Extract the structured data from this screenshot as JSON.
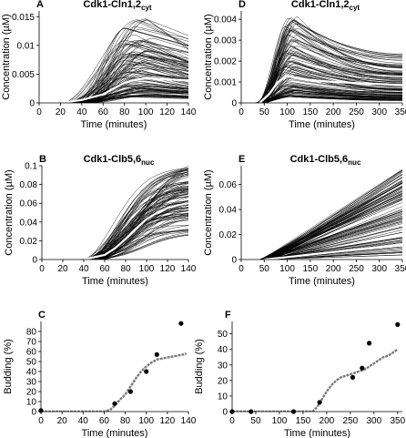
{
  "chart_data": [
    {
      "panel": "A",
      "type": "line",
      "title": "Cdk1-Cln1,2",
      "title_subscript": "cyt",
      "xlabel": "Time (minutes)",
      "ylabel": "Concentration (µM)",
      "xlim": [
        0,
        140
      ],
      "ylim": [
        0,
        0.016
      ],
      "xticks": [
        "0",
        "20",
        "40",
        "60",
        "80",
        "100",
        "120",
        "140"
      ],
      "yticks": [
        "0",
        "0.005",
        "0.01",
        "0.015"
      ],
      "grid": false,
      "ensemble": {
        "count": 110,
        "color": "#000000",
        "curve": "rise-plateau",
        "onset_range": [
          20,
          50
        ],
        "peak_time_range": [
          80,
          110
        ],
        "peak_range": [
          0.001,
          0.015
        ],
        "end_ratio_range": [
          0.6,
          0.85
        ]
      },
      "highlight": {
        "color": "#ffffff",
        "x": [
          20,
          40,
          60,
          70,
          80,
          90,
          100,
          110,
          120,
          130,
          140
        ],
        "values": [
          0,
          0.0005,
          0.0015,
          0.0025,
          0.0035,
          0.004,
          0.0043,
          0.0042,
          0.0041,
          0.004,
          0.0039
        ]
      }
    },
    {
      "panel": "D",
      "type": "line",
      "title": "Cdk1-Cln1,2",
      "title_subscript": "cyt",
      "xlabel": "Time (minutes)",
      "ylabel": "Concentration (µM)",
      "xlim": [
        0,
        350
      ],
      "ylim": [
        0,
        0.0044
      ],
      "xticks": [
        "0",
        "50",
        "100",
        "150",
        "200",
        "250",
        "300",
        "350"
      ],
      "yticks": [
        "0",
        "0.001",
        "0.002",
        "0.003",
        "0.004"
      ],
      "grid": false,
      "ensemble": {
        "count": 110,
        "color": "#000000",
        "curve": "rise-decay",
        "onset_range": [
          30,
          50
        ],
        "peak_time_range": [
          95,
          125
        ],
        "peak_range": [
          0.0003,
          0.0042
        ],
        "end_ratio_range": [
          0.35,
          0.65
        ]
      },
      "highlight": {
        "color": "#ffffff",
        "x": [
          40,
          60,
          80,
          100,
          120,
          150,
          200,
          250,
          300,
          350
        ],
        "values": [
          0,
          0.0004,
          0.001,
          0.0013,
          0.0012,
          0.0011,
          0.001,
          0.00095,
          0.0009,
          0.00085
        ]
      }
    },
    {
      "panel": "B",
      "type": "line",
      "title": "Cdk1-Clb5,6",
      "title_subscript": "nuc",
      "xlabel": "Time (minutes)",
      "ylabel": "Concentration (µM)",
      "xlim": [
        0,
        140
      ],
      "ylim": [
        0,
        0.1
      ],
      "xticks": [
        "0",
        "20",
        "40",
        "60",
        "80",
        "100",
        "120",
        "140"
      ],
      "yticks": [
        "0",
        "0.02",
        "0.04",
        "0.06",
        "0.08",
        "0.1"
      ],
      "grid": false,
      "ensemble": {
        "count": 110,
        "color": "#000000",
        "curve": "sigmoid",
        "onset_range": [
          40,
          60
        ],
        "mid_range": [
          65,
          100
        ],
        "final_range": [
          0.025,
          0.1
        ]
      },
      "highlight": {
        "color": "#ffffff",
        "x": [
          40,
          60,
          70,
          80,
          90,
          100,
          110,
          120,
          130,
          140
        ],
        "values": [
          0,
          0.005,
          0.012,
          0.022,
          0.033,
          0.043,
          0.05,
          0.055,
          0.058,
          0.06
        ]
      }
    },
    {
      "panel": "E",
      "type": "line",
      "title": "Cdk1-Clb5,6",
      "title_subscript": "nuc",
      "xlabel": "Time (minutes)",
      "ylabel": "Concentration (µM)",
      "xlim": [
        0,
        350
      ],
      "ylim": [
        0,
        0.075
      ],
      "xticks": [
        "0",
        "50",
        "100",
        "150",
        "200",
        "250",
        "300",
        "350"
      ],
      "yticks": [
        "0",
        "0.02",
        "0.04",
        "0.06"
      ],
      "grid": false,
      "ensemble": {
        "count": 110,
        "color": "#000000",
        "curve": "linear",
        "onset_range": [
          40,
          70
        ],
        "final_range": [
          0.002,
          0.072
        ]
      },
      "highlight": {
        "color": "#ffffff",
        "x": [
          50,
          100,
          150,
          200,
          250,
          300,
          350
        ],
        "values": [
          0,
          0.002,
          0.004,
          0.006,
          0.008,
          0.01,
          0.012
        ]
      }
    },
    {
      "panel": "C",
      "type": "line",
      "title": "",
      "xlabel": "Time (minutes)",
      "ylabel": "Budding (%)",
      "xlim": [
        0,
        140
      ],
      "ylim": [
        0,
        90
      ],
      "xticks": [
        "0",
        "20",
        "40",
        "60",
        "80",
        "100",
        "120",
        "140"
      ],
      "yticks": [
        "0",
        "10",
        "20",
        "30",
        "40",
        "50",
        "60",
        "70",
        "80"
      ],
      "grid": false,
      "series": [
        {
          "style": "gray-step",
          "color": "#7a7a7a",
          "x": [
            0,
            60,
            66,
            70,
            75,
            80,
            85,
            90,
            95,
            100,
            105,
            110,
            115,
            120,
            125,
            130,
            135,
            138
          ],
          "values": [
            0,
            0,
            2,
            6,
            12,
            17,
            25,
            33,
            40,
            45,
            49,
            52,
            53,
            54,
            55,
            56,
            57,
            58
          ]
        },
        {
          "style": "black-dots",
          "color": "#000000",
          "x": [
            0,
            70,
            85,
            100,
            110,
            133
          ],
          "values": [
            1,
            8,
            20,
            40,
            57,
            88
          ]
        }
      ]
    },
    {
      "panel": "F",
      "type": "line",
      "title": "",
      "xlabel": "Time (minutes)",
      "ylabel": "Budding (%)",
      "xlim": [
        0,
        360
      ],
      "ylim": [
        0,
        58
      ],
      "xticks": [
        "0",
        "50",
        "100",
        "150",
        "200",
        "250",
        "300",
        "350"
      ],
      "yticks": [
        "0",
        "10",
        "20",
        "30",
        "40",
        "50"
      ],
      "grid": false,
      "series": [
        {
          "style": "gray-step",
          "color": "#7a7a7a",
          "x": [
            0,
            170,
            180,
            190,
            200,
            210,
            220,
            230,
            240,
            250,
            260,
            270,
            280,
            290,
            300,
            310,
            320,
            330,
            340,
            350
          ],
          "values": [
            0,
            0,
            3,
            8,
            13,
            17,
            20,
            22,
            23,
            24,
            25,
            26,
            27,
            29,
            31,
            33,
            35,
            36,
            38,
            40
          ]
        },
        {
          "style": "black-dots",
          "color": "#000000",
          "x": [
            0,
            40,
            130,
            185,
            255,
            275,
            290,
            350
          ],
          "values": [
            0,
            0,
            0,
            6,
            22,
            28,
            44,
            56
          ]
        }
      ]
    }
  ]
}
